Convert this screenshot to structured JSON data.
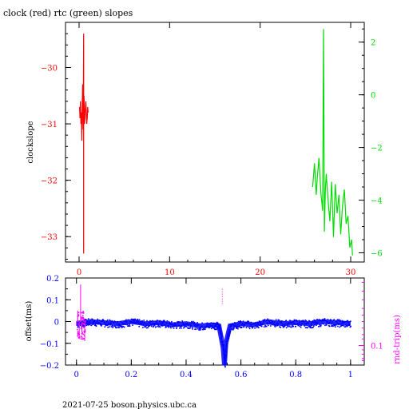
{
  "colors": {
    "axis": "#000000",
    "clock": "#ff0000",
    "rtc": "#00dd00",
    "offset": "#0000ff",
    "rndtrip": "#ff00ff"
  },
  "title": "clock (red) rtc (green) slopes",
  "footer": "2021-07-25  boson.physics.ubc.ca",
  "chart_data": [
    {
      "type": "line",
      "title": "clock (red) rtc (green) slopes",
      "ylabel": "clockslope",
      "xlim": [
        -1.5,
        31.5
      ],
      "ylim_left": [
        -33.45,
        -29.2
      ],
      "ylim_right": [
        -6.35,
        2.75
      ],
      "x_ticks": [
        "0",
        "10",
        "20",
        "30"
      ],
      "y_left_ticks": [
        "-30",
        "-31",
        "-32",
        "-33"
      ],
      "y_right_ticks": [
        "2",
        "0",
        "-2",
        "-4",
        "-6"
      ],
      "series": [
        {
          "name": "clock",
          "axis": "left",
          "color": "#ff0000",
          "x": [
            0.05,
            0.1,
            0.15,
            0.2,
            0.25,
            0.3,
            0.35,
            0.4,
            0.45,
            0.5,
            0.5,
            0.5,
            0.55,
            0.6,
            0.65,
            0.7,
            0.75,
            0.8,
            0.85,
            0.9,
            0.95,
            1.0
          ],
          "y": [
            -30.7,
            -30.9,
            -30.6,
            -31.0,
            -30.8,
            -31.3,
            -30.6,
            -30.3,
            -31.1,
            -29.4,
            -33.3,
            -30.8,
            -30.5,
            -31.0,
            -30.9,
            -30.7,
            -30.6,
            -30.8,
            -31.0,
            -30.9,
            -30.7,
            -30.8
          ]
        },
        {
          "name": "rtc",
          "axis": "right",
          "color": "#00dd00",
          "x": [
            25.8,
            26.0,
            26.2,
            26.3,
            26.5,
            26.7,
            26.9,
            27.0,
            27.1,
            27.2,
            27.3,
            27.5,
            27.7,
            27.9,
            28.1,
            28.3,
            28.5,
            28.7,
            28.9,
            29.1,
            29.3,
            29.5,
            29.7,
            29.9,
            30.1,
            30.2
          ],
          "y": [
            -3.5,
            -2.6,
            -3.8,
            -3.2,
            -2.4,
            -3.7,
            -4.4,
            2.5,
            -5.2,
            -3.6,
            -3.0,
            -4.0,
            -4.8,
            -3.3,
            -5.4,
            -3.4,
            -4.5,
            -3.8,
            -5.3,
            -4.2,
            -3.6,
            -4.9,
            -4.6,
            -5.8,
            -5.5,
            -6.1
          ]
        }
      ]
    },
    {
      "type": "scatter",
      "ylabel": "offset(ms)",
      "y2label": "rnd-trip(ms)",
      "xlim": [
        -0.04,
        1.05
      ],
      "ylim": [
        -0.2,
        0.2
      ],
      "x_ticks": [
        "0",
        "0.2",
        "0.4",
        "0.6",
        "0.8",
        "1"
      ],
      "y_ticks": [
        "0.2",
        "0.1",
        "0",
        "-0.1",
        "-0.2"
      ],
      "y2_ticks": [
        "0.1"
      ],
      "series": [
        {
          "name": "offset",
          "color": "#0000ff",
          "x": [
            0.0,
            0.05,
            0.1,
            0.15,
            0.2,
            0.25,
            0.3,
            0.35,
            0.4,
            0.45,
            0.5,
            0.52,
            0.535,
            0.54,
            0.545,
            0.56,
            0.6,
            0.65,
            0.7,
            0.75,
            0.8,
            0.85,
            0.9,
            0.95,
            1.0
          ],
          "y": [
            -0.01,
            0.0,
            -0.005,
            -0.01,
            0.0,
            -0.01,
            -0.005,
            -0.015,
            -0.01,
            -0.02,
            -0.015,
            -0.02,
            -0.12,
            -0.2,
            -0.1,
            -0.02,
            -0.01,
            -0.015,
            0.0,
            -0.01,
            -0.005,
            -0.01,
            0.0,
            -0.005,
            -0.01
          ]
        },
        {
          "name": "rnd-trip",
          "color": "#ff00ff",
          "x": [
            0.0,
            0.005,
            0.01,
            0.015,
            0.02,
            0.025,
            0.03
          ],
          "y": [
            -0.02,
            0.05,
            -0.08,
            0.17,
            -0.05,
            0.02,
            -0.09
          ]
        }
      ]
    }
  ]
}
